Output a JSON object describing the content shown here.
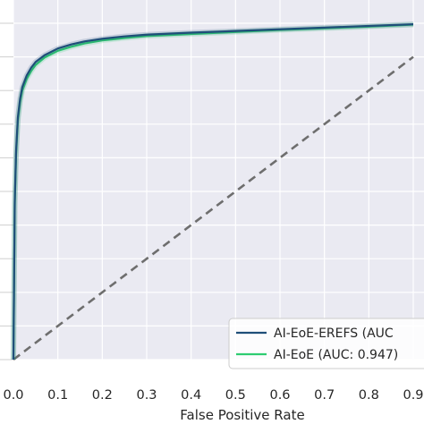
{
  "chart_data": {
    "type": "line",
    "xlabel": "False Positive Rate",
    "ylabel": "",
    "xlim": [
      0.0,
      0.9
    ],
    "ylim": [
      0.0,
      1.0
    ],
    "x_ticks": [
      "0.0",
      "0.1",
      "0.2",
      "0.3",
      "0.4",
      "0.5",
      "0.6",
      "0.7",
      "0.8",
      "0.9"
    ],
    "grid": true,
    "legend_position": "bottom-right",
    "series": [
      {
        "name": "AI-EoE-EREFS (AUC",
        "color": "#1f4e79",
        "x": [
          0,
          0.003,
          0.006,
          0.01,
          0.015,
          0.02,
          0.03,
          0.04,
          0.05,
          0.07,
          0.1,
          0.13,
          0.16,
          0.2,
          0.25,
          0.3,
          0.4,
          0.5,
          0.6,
          0.7,
          0.8,
          0.9
        ],
        "y": [
          0,
          0.47,
          0.62,
          0.72,
          0.775,
          0.81,
          0.845,
          0.868,
          0.885,
          0.905,
          0.925,
          0.937,
          0.946,
          0.954,
          0.961,
          0.966,
          0.972,
          0.977,
          0.982,
          0.987,
          0.992,
          0.997
        ]
      },
      {
        "name": "AI-EoE (AUC: 0.947)",
        "color": "#2ecc71",
        "x": [
          0,
          0.003,
          0.006,
          0.01,
          0.015,
          0.02,
          0.03,
          0.04,
          0.05,
          0.07,
          0.1,
          0.13,
          0.16,
          0.2,
          0.25,
          0.3,
          0.4,
          0.5,
          0.6,
          0.7,
          0.8,
          0.9
        ],
        "y": [
          0,
          0.46,
          0.61,
          0.71,
          0.765,
          0.8,
          0.835,
          0.858,
          0.876,
          0.898,
          0.918,
          0.93,
          0.94,
          0.949,
          0.956,
          0.962,
          0.968,
          0.974,
          0.98,
          0.985,
          0.99,
          0.996
        ]
      },
      {
        "name": "",
        "color": "#6e6e6e",
        "dashed": true,
        "x": [
          0,
          0.9
        ],
        "y": [
          0,
          0.9
        ]
      }
    ]
  }
}
